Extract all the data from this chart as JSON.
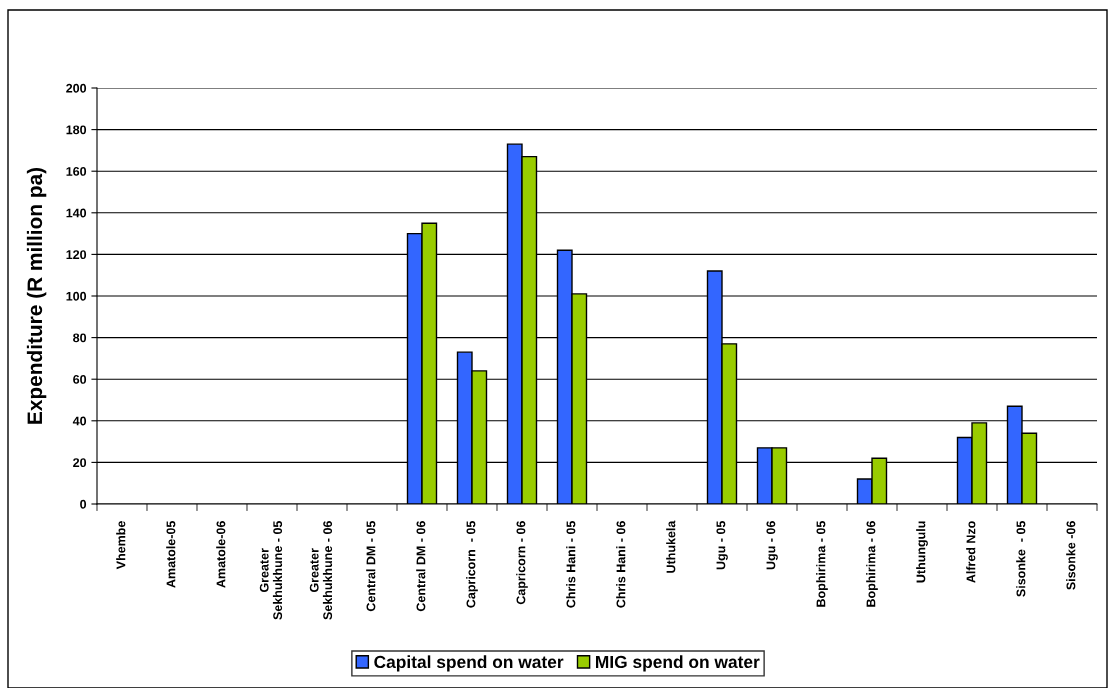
{
  "chart_data": {
    "type": "bar",
    "ylabel": "Expenditure (R million pa)",
    "categories": [
      "Vhembe",
      "Amatole-05",
      "Amatole-06",
      "Greater\nSekhukhune - 05",
      "Greater\nSekhukhune - 06",
      "Central DM - 05",
      "Central DM - 06",
      "Capricorn  - 05",
      "Capricorn - 06",
      "Chris Hani - 05",
      "Chris Hani - 06",
      "Uthukela",
      "Ugu - 05",
      "Ugu - 06",
      "Bophirima - 05",
      "Bophirima - 06",
      "Uthungulu",
      "Alfred Nzo",
      "Sisonke  - 05",
      "Sisonke -06"
    ],
    "series": [
      {
        "name": "Capital spend on water",
        "color": "#3366ff",
        "values": [
          null,
          null,
          null,
          null,
          null,
          null,
          130,
          73,
          173,
          122,
          null,
          null,
          112,
          27,
          null,
          12,
          null,
          32,
          47,
          null
        ]
      },
      {
        "name": "MIG spend on water",
        "color": "#99cc00",
        "values": [
          null,
          null,
          null,
          null,
          null,
          null,
          135,
          64,
          167,
          101,
          null,
          null,
          77,
          27,
          null,
          22,
          null,
          39,
          34,
          null
        ]
      }
    ],
    "ylim": [
      0,
      200
    ],
    "yticks": [
      0,
      20,
      40,
      60,
      80,
      100,
      120,
      140,
      160,
      180,
      200
    ],
    "grid": "y",
    "legend": "bottom"
  }
}
